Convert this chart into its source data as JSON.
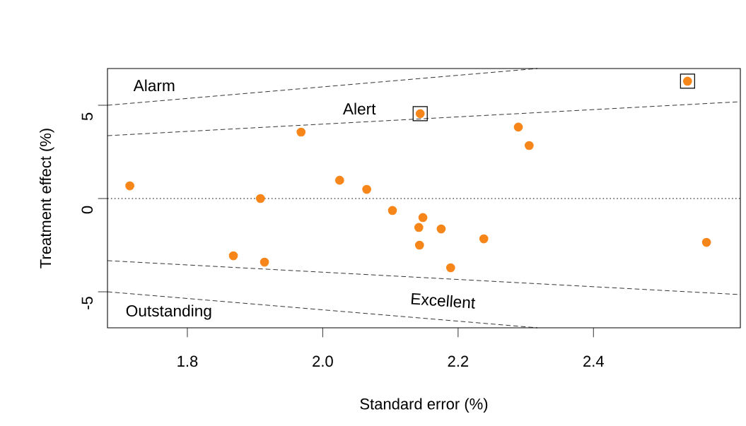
{
  "chart_data": {
    "type": "scatter",
    "xlabel": "Standard error (%)",
    "ylabel": "Treatment effect (%)",
    "xlim": [
      1.682,
      2.617
    ],
    "ylim": [
      -6.93,
      6.97
    ],
    "xticks": [
      1.8,
      {
        "value": 2.0,
        "label": "2.0"
      },
      2.2,
      2.4
    ],
    "yticks": [
      -5,
      0,
      5
    ],
    "grid": false,
    "series": [
      {
        "marker": "circle",
        "color": "#f7861a",
        "x": [
          1.715,
          1.908,
          1.968,
          1.868,
          1.914,
          2.025,
          2.065,
          2.103,
          2.148,
          2.142,
          2.175,
          2.143,
          2.238,
          2.189,
          2.144,
          2.289,
          2.305,
          2.539,
          2.567
        ],
        "values": [
          0.68,
          0,
          3.56,
          -3.07,
          -3.41,
          0.98,
          0.49,
          -0.64,
          -1.02,
          -1.55,
          -1.63,
          -2.5,
          -2.16,
          -3.71,
          4.55,
          3.83,
          2.84,
          6.29,
          -2.35
        ]
      },
      {
        "type": "scatter",
        "marker": "square",
        "color": "#000000",
        "x": [
          2.144,
          2.539
        ],
        "values": [
          4.55,
          6.29
        ]
      },
      {
        "type": "line",
        "line_style": "dashed",
        "color": "#000000",
        "x": [
          1.682,
          2.317
        ],
        "values": [
          5.0,
          6.97
        ]
      },
      {
        "type": "line",
        "line_style": "dashed",
        "color": "#000000",
        "x": [
          1.682,
          2.617
        ],
        "values": [
          3.37,
          5.19
        ]
      },
      {
        "type": "line",
        "line_style": "dashed",
        "color": "#000000",
        "x": [
          1.682,
          2.617
        ],
        "values": [
          -3.33,
          -5.15
        ]
      },
      {
        "type": "line",
        "line_style": "dashed",
        "color": "#000000",
        "x": [
          1.682,
          2.317
        ],
        "values": [
          -5.0,
          -6.93
        ]
      }
    ],
    "ref_lines": [
      {
        "axis": "y",
        "value": 0,
        "line_style": "dotted",
        "color": "#000000"
      }
    ],
    "annotations": [
      "Alarm",
      "Alert",
      "Excellent",
      "Outstanding"
    ]
  }
}
